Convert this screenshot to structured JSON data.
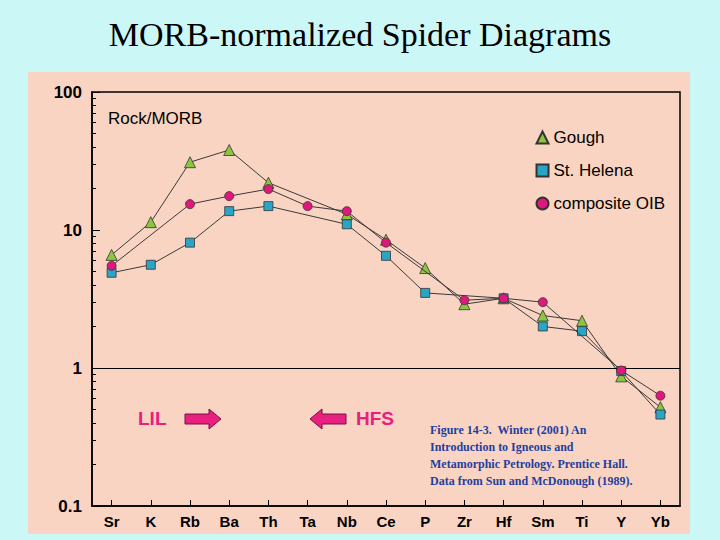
{
  "chart_data": {
    "type": "line",
    "title": "MORB-normalized Spider Diagrams",
    "y_label": "Rock/MORB",
    "categories": [
      "Sr",
      "K",
      "Rb",
      "Ba",
      "Th",
      "Ta",
      "Nb",
      "Ce",
      "P",
      "Zr",
      "Hf",
      "Sm",
      "Ti",
      "Y",
      "Yb"
    ],
    "series": [
      {
        "name": "Gough",
        "color": "#8cc63f",
        "marker": "triangle",
        "values": [
          6.6,
          11.4,
          31,
          38,
          22,
          null,
          13,
          8.5,
          5.3,
          2.9,
          3.2,
          2.4,
          2.2,
          0.87,
          0.52
        ]
      },
      {
        "name": "St. Helena",
        "color": "#2aa5c6",
        "marker": "square",
        "values": [
          4.9,
          5.6,
          8.1,
          13.7,
          14.9,
          null,
          11,
          6.5,
          3.5,
          null,
          3.2,
          2.0,
          1.85,
          0.95,
          0.46
        ]
      },
      {
        "name": "composite OIB",
        "color": "#e0177d",
        "marker": "circle",
        "values": [
          5.5,
          null,
          15.4,
          17.6,
          19.8,
          14.9,
          13.7,
          8.1,
          null,
          3.1,
          3.2,
          3.0,
          null,
          0.96,
          0.63
        ]
      }
    ],
    "ylim": [
      0.1,
      100
    ],
    "yticks": [
      0.1,
      1,
      10,
      100
    ],
    "log": "y",
    "grid": false,
    "legend": "upper right",
    "hlines": [
      1
    ],
    "annotations": [
      {
        "text": "LIL",
        "arrow": "right"
      },
      {
        "text": "HFS",
        "arrow": "left"
      }
    ],
    "caption": [
      "Figure 14-3.  Winter (2001) An",
      "Introduction to Igneous and",
      "Metamorphic Petrology. Prentice Hall.",
      "Data from Sun and McDonough (1989)."
    ]
  }
}
